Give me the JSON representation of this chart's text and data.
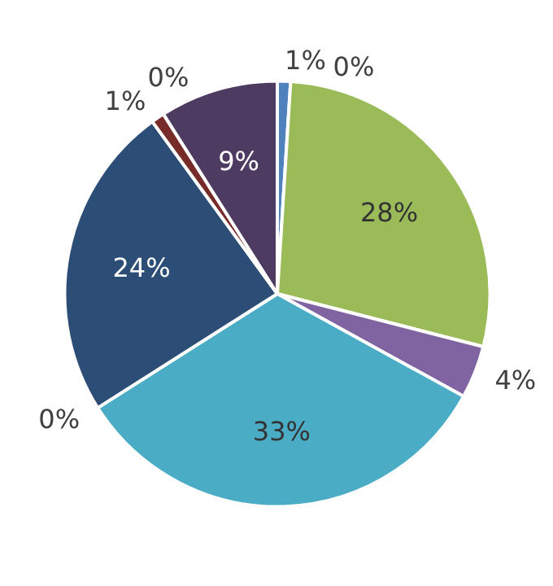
{
  "chart_data": {
    "type": "pie",
    "categories": [
      null,
      null,
      null,
      null,
      null,
      null,
      null,
      null,
      null,
      null
    ],
    "values": [
      1,
      0,
      28,
      4,
      33,
      0,
      24,
      1,
      0,
      9
    ],
    "colors": [
      "#4f81bd",
      "#c0504d",
      "#9bbb59",
      "#8064a2",
      "#4bacc6",
      "#f79646",
      "#2c4d75",
      "#772c2a",
      "#5f7530",
      "#4d3b62"
    ],
    "value_labels": [
      "1%",
      "0%",
      "28%",
      "4%",
      "33%",
      "0%",
      "24%",
      "1%",
      "0%",
      "9%"
    ]
  }
}
